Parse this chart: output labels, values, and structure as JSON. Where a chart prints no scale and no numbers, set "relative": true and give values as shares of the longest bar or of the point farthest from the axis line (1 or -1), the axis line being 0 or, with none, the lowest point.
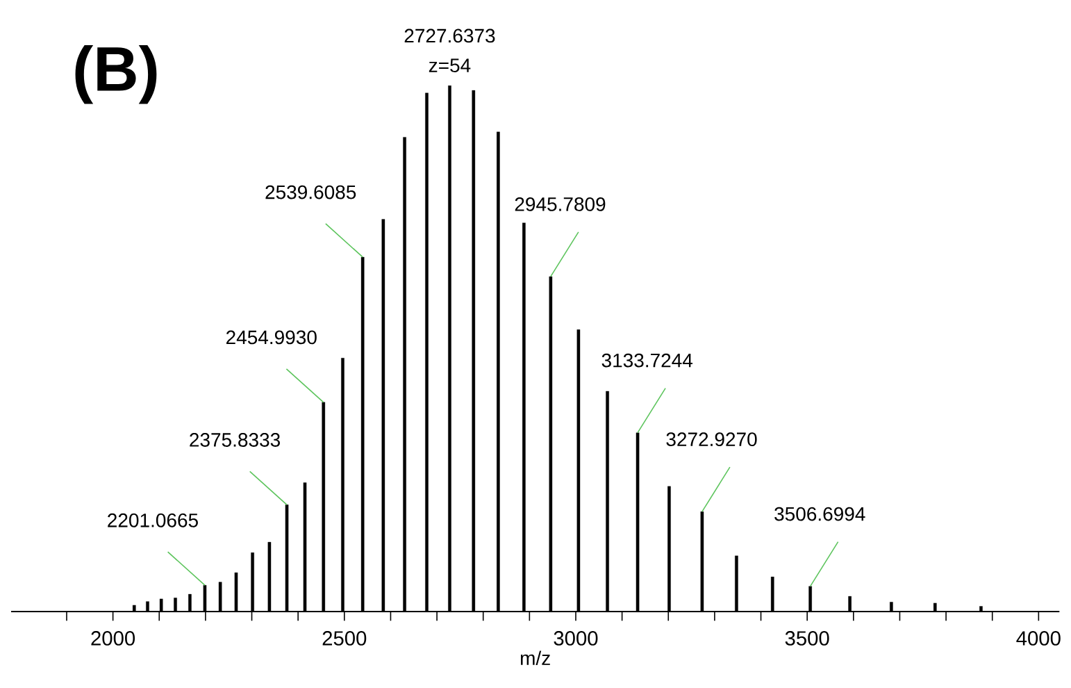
{
  "chart_data": {
    "type": "bar",
    "relative": true,
    "color": "#000000",
    "xlabel": "m/z",
    "x": [
      2046.0,
      2074.8,
      2104.4,
      2134.9,
      2166.3,
      2198.6,
      2231.9,
      2266.2,
      2301.6,
      2338.1,
      2375.8,
      2414.8,
      2454.9,
      2496.5,
      2539.6,
      2584.1,
      2630.2,
      2678.1,
      2727.6,
      2779.1,
      2832.5,
      2888.0,
      2945.8,
      3005.9,
      3068.4,
      3133.7,
      3201.8,
      3273.0,
      3347.3,
      3425.1,
      3506.7,
      3592.2,
      3681.9,
      3776.3,
      3875.6
    ],
    "values": [
      0.012,
      0.019,
      0.024,
      0.026,
      0.033,
      0.05,
      0.056,
      0.074,
      0.112,
      0.132,
      0.203,
      0.245,
      0.398,
      0.482,
      0.674,
      0.746,
      0.902,
      0.986,
      1,
      0.991,
      0.912,
      0.739,
      0.637,
      0.536,
      0.419,
      0.34,
      0.238,
      0.19,
      0.106,
      0.066,
      0.048,
      0.029,
      0.018,
      0.016,
      0.01
    ],
    "xlim": [
      1780,
      4045
    ],
    "xticks": [
      {
        "value": 1900,
        "label": null
      },
      2000,
      {
        "value": 2100,
        "label": null
      },
      {
        "value": 2200,
        "label": null
      },
      {
        "value": 2300,
        "label": null
      },
      {
        "value": 2400,
        "label": null
      },
      2500,
      {
        "value": 2600,
        "label": null
      },
      {
        "value": 2700,
        "label": null
      },
      {
        "value": 2800,
        "label": null
      },
      {
        "value": 2900,
        "label": null
      },
      3000,
      {
        "value": 3100,
        "label": null
      },
      {
        "value": 3200,
        "label": null
      },
      {
        "value": 3300,
        "label": null
      },
      {
        "value": 3400,
        "label": null
      },
      3500,
      {
        "value": 3600,
        "label": null
      },
      {
        "value": 3700,
        "label": null
      },
      {
        "value": 3800,
        "label": null
      },
      {
        "value": 3900,
        "label": null
      },
      4000
    ],
    "annotations": [
      "(B)",
      {
        "text": "2727.6373",
        "x": 2727.6,
        "y": 1
      },
      {
        "text": "z=54",
        "x": 2727.6,
        "y": 1
      },
      {
        "text": "2201.0665",
        "x": 2198.6,
        "y": 0.05
      },
      {
        "text": "2375.8333",
        "x": 2375.8,
        "y": 0.203
      },
      {
        "text": "2454.9930",
        "x": 2454.9,
        "y": 0.398
      },
      {
        "text": "2539.6085",
        "x": 2539.6,
        "y": 0.674
      },
      {
        "text": "2945.7809",
        "x": 2945.8,
        "y": 0.637
      },
      {
        "text": "3133.7244",
        "x": 3133.7,
        "y": 0.34
      },
      {
        "text": "3272.9270",
        "x": 3273.0,
        "y": 0.19
      },
      {
        "text": "3506.6994",
        "x": 3506.7,
        "y": 0.048
      }
    ]
  }
}
